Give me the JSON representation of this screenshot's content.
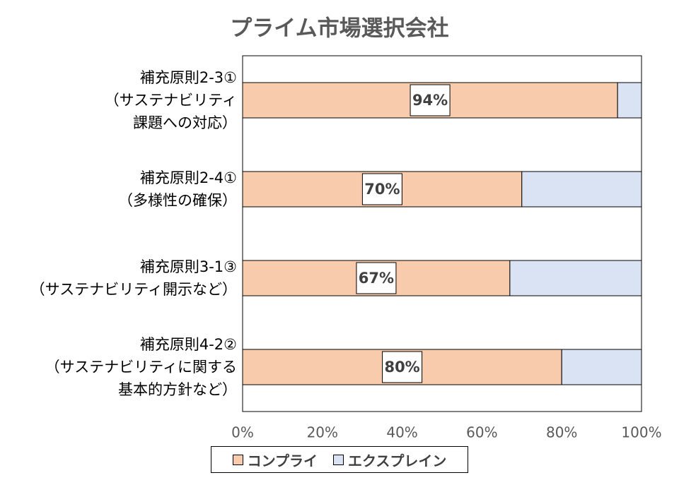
{
  "chart_data": {
    "type": "stacked-bar-horizontal",
    "title": "プライム市場選択会社",
    "categories": [
      "補充原則2-3①\n（サステナビリティ\n課題への対応）",
      "補充原則2-4①\n（多様性の確保）",
      "補充原則3-1③\n（サステナビリティ開示など）",
      "補充原則4-2②\n（サステナビリティに関する\n基本的方針など）"
    ],
    "series": [
      {
        "name": "コンプライ",
        "color": "#f8cbad",
        "values": [
          94,
          70,
          67,
          80
        ],
        "value_labels": [
          "94%",
          "70%",
          "67%",
          "80%"
        ]
      },
      {
        "name": "エクスプレイン",
        "color": "#dae3f3",
        "values": [
          6,
          30,
          33,
          20
        ]
      }
    ],
    "xlim": [
      0,
      100
    ],
    "xticks": [
      {
        "value": 0,
        "label": "0%"
      },
      {
        "value": 20,
        "label": "20%"
      },
      {
        "value": 40,
        "label": "40%"
      },
      {
        "value": 60,
        "label": "60%"
      },
      {
        "value": 80,
        "label": "80%"
      },
      {
        "value": 100,
        "label": "100%"
      }
    ],
    "legend": "bottom"
  }
}
